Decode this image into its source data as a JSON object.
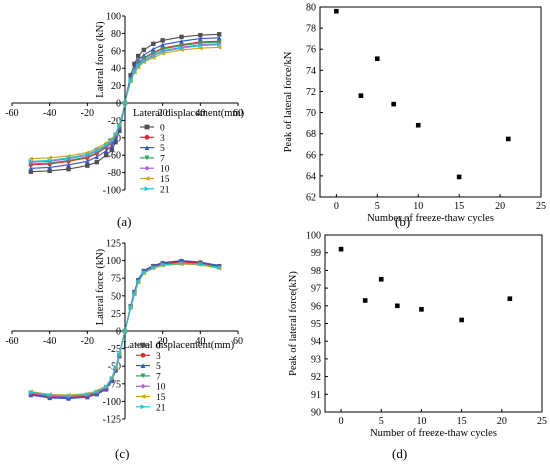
{
  "chart_data": [
    {
      "panel": "(a)",
      "type": "line",
      "xlabel": "Lateral displacement(mm)",
      "ylabel": "Lateral force (kN)",
      "xlim": [
        -60,
        60
      ],
      "ylim": [
        -100,
        100
      ],
      "xticks": [
        -60,
        -40,
        -20,
        0,
        20,
        40,
        60
      ],
      "yticks": [
        -100,
        -80,
        -60,
        -40,
        -20,
        0,
        20,
        40,
        60,
        80,
        100
      ],
      "legend_position": "lower-right",
      "x": [
        -50,
        -40,
        -30,
        -20,
        -15,
        -10,
        -7,
        -5,
        -3,
        -1,
        0,
        1,
        3,
        5,
        7,
        10,
        15,
        20,
        30,
        40,
        50
      ],
      "series": [
        {
          "name": "0",
          "color": "#505050",
          "marker": "square",
          "values": [
            -79,
            -78,
            -76,
            -72,
            -68,
            -60,
            -54,
            -45,
            -32,
            -12,
            0,
            12,
            32,
            45,
            54,
            61,
            68,
            72,
            76,
            78,
            79
          ]
        },
        {
          "name": "3",
          "color": "#e8282c",
          "marker": "circle",
          "values": [
            -71,
            -70,
            -67,
            -63,
            -58,
            -51,
            -46,
            -39,
            -28,
            -10,
            0,
            10,
            28,
            39,
            46,
            52,
            58,
            63,
            67,
            70,
            71
          ]
        },
        {
          "name": "5",
          "color": "#3356d8",
          "marker": "triangle",
          "values": [
            -75,
            -74,
            -71,
            -67,
            -62,
            -55,
            -49,
            -41,
            -30,
            -11,
            0,
            11,
            30,
            41,
            49,
            55,
            62,
            67,
            71,
            74,
            75
          ]
        },
        {
          "name": "7",
          "color": "#2aa55a",
          "marker": "triangle-down",
          "values": [
            -70,
            -69,
            -66,
            -62,
            -57,
            -50,
            -45,
            -38,
            -27,
            -10,
            0,
            10,
            27,
            38,
            45,
            51,
            57,
            62,
            66,
            69,
            70
          ]
        },
        {
          "name": "10",
          "color": "#b05cd8",
          "marker": "diamond",
          "values": [
            -68,
            -67,
            -64,
            -60,
            -55,
            -49,
            -44,
            -37,
            -26,
            -10,
            0,
            10,
            26,
            37,
            44,
            49,
            55,
            60,
            64,
            67,
            68
          ]
        },
        {
          "name": "15",
          "color": "#d6a010",
          "marker": "triangle-left",
          "values": [
            -64,
            -63,
            -61,
            -57,
            -52,
            -46,
            -41,
            -35,
            -25,
            -9,
            0,
            9,
            25,
            35,
            41,
            47,
            52,
            57,
            61,
            63,
            64
          ]
        },
        {
          "name": "21",
          "color": "#1ec4d8",
          "marker": "triangle-right",
          "values": [
            -67,
            -66,
            -63,
            -59,
            -54,
            -48,
            -43,
            -36,
            -26,
            -10,
            0,
            10,
            26,
            36,
            43,
            48,
            54,
            59,
            63,
            66,
            67
          ]
        }
      ]
    },
    {
      "panel": "(b)",
      "type": "scatter",
      "xlabel": "Number of freeze-thaw cycles",
      "ylabel": "Peak of lateral force/kN",
      "xlim": [
        -2,
        25
      ],
      "ylim": [
        62,
        80
      ],
      "xticks": [
        0,
        5,
        10,
        15,
        20,
        25
      ],
      "yticks": [
        62,
        64,
        66,
        68,
        70,
        72,
        74,
        76,
        78,
        80
      ],
      "color": "#000000",
      "x": [
        0,
        3,
        5,
        7,
        10,
        15,
        21
      ],
      "values": [
        79.6,
        71.6,
        75.1,
        70.8,
        68.8,
        63.9,
        67.5
      ]
    },
    {
      "panel": "(c)",
      "type": "line",
      "xlabel": "Lateral displacement(mm)",
      "ylabel": "Lateral force (kN)",
      "xlim": [
        -60,
        60
      ],
      "ylim": [
        -125,
        125
      ],
      "xticks": [
        -60,
        -40,
        -20,
        0,
        20,
        40,
        60
      ],
      "yticks": [
        -125,
        -100,
        -75,
        -50,
        -25,
        0,
        25,
        50,
        75,
        100,
        125
      ],
      "legend_position": "lower-right",
      "x": [
        -50,
        -40,
        -30,
        -20,
        -15,
        -10,
        -7,
        -5,
        -3,
        -1,
        0,
        1,
        3,
        5,
        7,
        10,
        15,
        20,
        30,
        40,
        50
      ],
      "series": [
        {
          "name": "0",
          "color": "#505050",
          "marker": "square",
          "values": [
            -90,
            -94,
            -95,
            -93,
            -89,
            -82,
            -70,
            -55,
            -35,
            -12,
            0,
            12,
            35,
            55,
            72,
            85,
            92,
            96,
            99,
            97,
            92
          ]
        },
        {
          "name": "3",
          "color": "#e8282c",
          "marker": "circle",
          "values": [
            -89,
            -93,
            -94,
            -92,
            -88,
            -81,
            -69,
            -54,
            -34,
            -12,
            0,
            12,
            34,
            54,
            71,
            84,
            91,
            95,
            98,
            96,
            91
          ]
        },
        {
          "name": "5",
          "color": "#3356d8",
          "marker": "triangle",
          "values": [
            -91,
            -95,
            -96,
            -94,
            -90,
            -83,
            -71,
            -56,
            -36,
            -12,
            0,
            12,
            36,
            56,
            73,
            86,
            93,
            97,
            100,
            98,
            93
          ]
        },
        {
          "name": "7",
          "color": "#2aa55a",
          "marker": "triangle-down",
          "values": [
            -88,
            -92,
            -93,
            -91,
            -87,
            -80,
            -68,
            -53,
            -34,
            -11,
            0,
            11,
            34,
            53,
            70,
            83,
            90,
            94,
            96,
            95,
            90
          ]
        },
        {
          "name": "10",
          "color": "#b05cd8",
          "marker": "diamond",
          "values": [
            -88,
            -92,
            -93,
            -91,
            -87,
            -80,
            -68,
            -53,
            -34,
            -11,
            0,
            11,
            34,
            53,
            70,
            83,
            90,
            94,
            96,
            95,
            90
          ]
        },
        {
          "name": "15",
          "color": "#d6a010",
          "marker": "triangle-left",
          "values": [
            -86,
            -90,
            -91,
            -89,
            -85,
            -78,
            -66,
            -52,
            -33,
            -11,
            0,
            11,
            33,
            52,
            69,
            82,
            89,
            93,
            95,
            94,
            89
          ]
        },
        {
          "name": "21",
          "color": "#1ec4d8",
          "marker": "triangle-right",
          "values": [
            -87,
            -91,
            -92,
            -90,
            -86,
            -79,
            -67,
            -52,
            -33,
            -11,
            0,
            11,
            33,
            52,
            70,
            83,
            90,
            94,
            96,
            95,
            90
          ]
        }
      ]
    },
    {
      "panel": "(d)",
      "type": "scatter",
      "xlabel": "Number of freeze-thaw cycles",
      "ylabel": "Peak of lateral force(kN)",
      "xlim": [
        -2,
        25
      ],
      "ylim": [
        90,
        100
      ],
      "xticks": [
        0,
        5,
        10,
        15,
        20,
        25
      ],
      "yticks": [
        90,
        91,
        92,
        93,
        94,
        95,
        96,
        97,
        98,
        99,
        100
      ],
      "color": "#000000",
      "x": [
        0,
        3,
        5,
        7,
        10,
        15,
        21
      ],
      "values": [
        99.2,
        96.3,
        97.5,
        96.0,
        95.8,
        95.2,
        96.4
      ]
    }
  ]
}
